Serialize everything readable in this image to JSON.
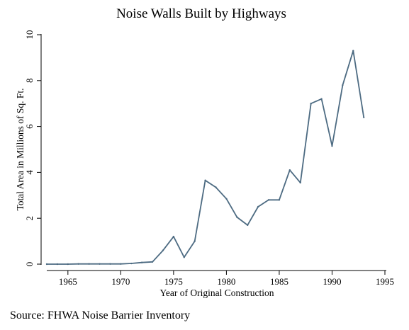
{
  "chart_data": {
    "type": "line",
    "title": "Noise Walls Built by Highways",
    "xlabel": "Year of Original Construction",
    "ylabel": "Total Area in Millions of Sq. Ft.",
    "xlim": [
      1963,
      1995
    ],
    "ylim": [
      0,
      10
    ],
    "x_ticks": [
      1965,
      1970,
      1975,
      1980,
      1985,
      1990,
      1995
    ],
    "y_ticks": [
      0,
      2,
      4,
      6,
      8,
      10
    ],
    "grid": false,
    "legend": "none",
    "line_color": "#4d6b82",
    "series": [
      {
        "x": [
          1963,
          1964,
          1965,
          1966,
          1967,
          1968,
          1969,
          1970,
          1971,
          1972,
          1973,
          1974,
          1975,
          1976,
          1977,
          1978,
          1979,
          1980,
          1981,
          1982,
          1983,
          1984,
          1985,
          1986,
          1987,
          1988,
          1989,
          1990,
          1991,
          1992,
          1993
        ],
        "values": [
          0.0,
          0.0,
          0.0,
          0.01,
          0.01,
          0.01,
          0.01,
          0.01,
          0.03,
          0.07,
          0.1,
          0.6,
          1.2,
          0.3,
          1.0,
          3.65,
          3.35,
          2.85,
          2.05,
          1.7,
          2.5,
          2.8,
          2.8,
          4.1,
          3.55,
          7.0,
          7.2,
          5.15,
          7.8,
          9.3,
          6.4
        ]
      }
    ]
  },
  "source_note": "Source: FHWA Noise Barrier Inventory"
}
